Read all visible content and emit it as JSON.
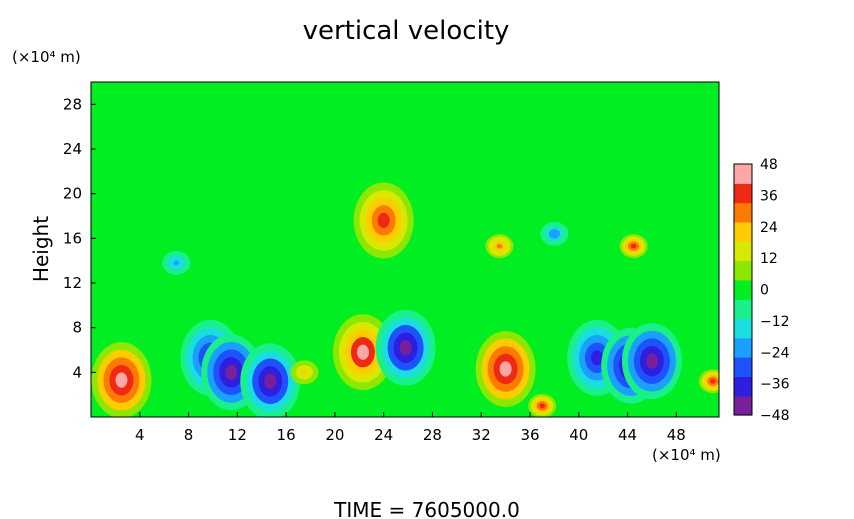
{
  "chart_data": {
    "type": "heatmap",
    "title": "vertical velocity",
    "ylabel": "Height",
    "y_unit": "(×10⁴ m)",
    "x_unit": "(×10⁴ m)",
    "xlim": [
      0,
      51.5
    ],
    "ylim": [
      0,
      30
    ],
    "x_ticks": [
      "4",
      "8",
      "12",
      "16",
      "20",
      "24",
      "28",
      "32",
      "36",
      "40",
      "44",
      "48"
    ],
    "y_ticks": [
      "4",
      "8",
      "12",
      "16",
      "20",
      "24",
      "28"
    ],
    "colorbar": {
      "range": [
        -48,
        48
      ],
      "ticks": [
        "48",
        "36",
        "24",
        "12",
        "0",
        "−12",
        "−24",
        "−36",
        "−48"
      ],
      "colors": [
        "#7a1f9a",
        "#2d1ee0",
        "#1e52ff",
        "#1aa0ff",
        "#1adede",
        "#19f08a",
        "#00ee22",
        "#8ce800",
        "#d8e800",
        "#ffcc00",
        "#ff7a00",
        "#ee2a14",
        "#ffa6a6"
      ]
    },
    "background_value": 0,
    "features": [
      {
        "x": 2.5,
        "y": 3.3,
        "value": 48
      },
      {
        "x": 9.8,
        "y": 5.3,
        "value": -40
      },
      {
        "x": 11.5,
        "y": 4.0,
        "value": -48
      },
      {
        "x": 14.7,
        "y": 3.2,
        "value": -46
      },
      {
        "x": 17.5,
        "y": 4.0,
        "value": 20
      },
      {
        "x": 22.3,
        "y": 5.8,
        "value": 42
      },
      {
        "x": 25.8,
        "y": 6.2,
        "value": -46
      },
      {
        "x": 34.0,
        "y": 4.3,
        "value": 48
      },
      {
        "x": 37.0,
        "y": 1.0,
        "value": 36
      },
      {
        "x": 41.5,
        "y": 5.3,
        "value": -40
      },
      {
        "x": 44.3,
        "y": 4.6,
        "value": -48
      },
      {
        "x": 46.0,
        "y": 5.0,
        "value": -48
      },
      {
        "x": 51.0,
        "y": 3.2,
        "value": 36
      },
      {
        "x": 24.0,
        "y": 17.6,
        "value": 40
      },
      {
        "x": 44.5,
        "y": 15.3,
        "value": 36
      },
      {
        "x": 33.5,
        "y": 15.3,
        "value": 30
      },
      {
        "x": 7.0,
        "y": 13.8,
        "value": -20
      },
      {
        "x": 38.0,
        "y": 16.4,
        "value": -24
      }
    ]
  },
  "footer": {
    "time_label": "TIME  =  7605000.0"
  }
}
